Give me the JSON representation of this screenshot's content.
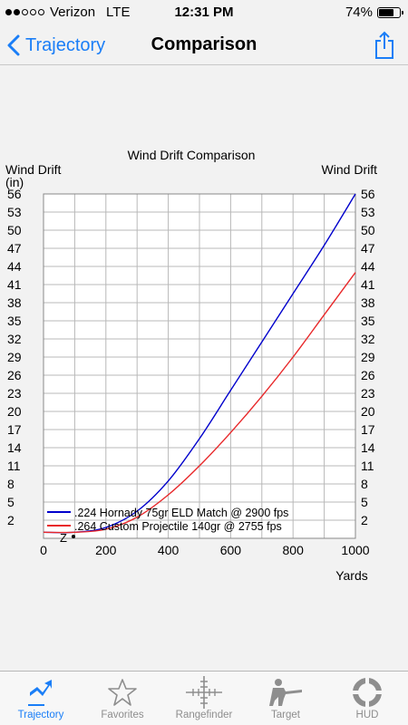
{
  "status_bar": {
    "carrier": "Verizon",
    "network": "LTE",
    "time": "12:31 PM",
    "battery": "74%",
    "battery_level": 0.74
  },
  "nav": {
    "back_label": "Trajectory",
    "title": "Comparison"
  },
  "colors": {
    "accent": "#1a7ef7",
    "series_1": "#0000cc",
    "series_2": "#e8282a",
    "tab_inactive": "#8e8e8e"
  },
  "chart_data": {
    "type": "line",
    "title": "Wind Drift Comparison",
    "ylabel": "Wind Drift",
    "ylabel_unit": "(in)",
    "xlabel": "Yards",
    "xlim": [
      0,
      1000
    ],
    "ylim": [
      -1,
      56
    ],
    "x_ticks": [
      "0",
      "200",
      "400",
      "600",
      "800",
      "1000"
    ],
    "y_ticks": [
      "2",
      "5",
      "8",
      "11",
      "14",
      "17",
      "20",
      "23",
      "26",
      "29",
      "32",
      "35",
      "38",
      "41",
      "44",
      "47",
      "50",
      "53",
      "56"
    ],
    "grid": true,
    "legend_position": "bottom-left",
    "zero_marker": "Z",
    "series": [
      {
        "name": ".224 Hornady 75gr ELD Match @ 2900 fps",
        "color": "#0000cc",
        "x": [
          0,
          100,
          200,
          300,
          400,
          500,
          600,
          700,
          800,
          900,
          1000
        ],
        "y": [
          0,
          0,
          0.8,
          3.5,
          8.5,
          15.5,
          23.5,
          31.5,
          39.5,
          47.5,
          56
        ]
      },
      {
        "name": ".264 Custom Projectile 140gr @ 2755 fps",
        "color": "#e8282a",
        "x": [
          0,
          100,
          200,
          300,
          400,
          500,
          600,
          700,
          800,
          900,
          1000
        ],
        "y": [
          0,
          0,
          0.5,
          2.5,
          6.2,
          11,
          16.5,
          22.5,
          29,
          36,
          43
        ]
      }
    ]
  },
  "tabs": [
    {
      "label": "Trajectory",
      "icon": "trajectory-icon",
      "active": true
    },
    {
      "label": "Favorites",
      "icon": "star-icon",
      "active": false
    },
    {
      "label": "Rangefinder",
      "icon": "reticle-icon",
      "active": false
    },
    {
      "label": "Target",
      "icon": "shooter-icon",
      "active": false
    },
    {
      "label": "HUD",
      "icon": "hud-icon",
      "active": false
    }
  ]
}
